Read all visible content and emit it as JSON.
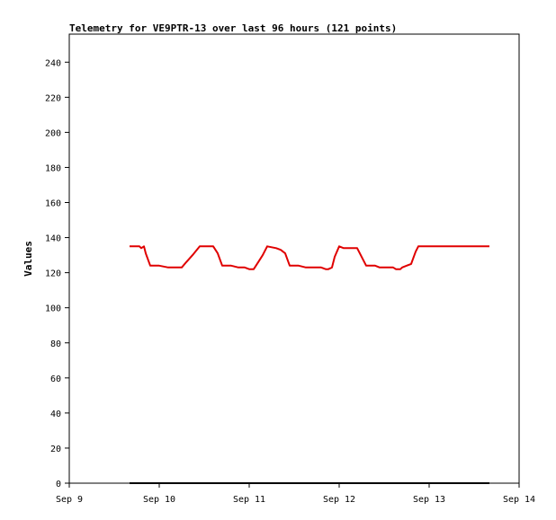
{
  "chart_data": {
    "type": "line",
    "title": "Telemetry for VE9PTR-13 over last 96 hours (121 points)",
    "xlabel": "",
    "ylabel": "Values",
    "x_ticks": [
      "Sep 9",
      "Sep 10",
      "Sep 11",
      "Sep 12",
      "Sep 13",
      "Sep 14"
    ],
    "xlim_days": [
      0,
      5
    ],
    "y_ticks": [
      0,
      20,
      40,
      60,
      80,
      100,
      120,
      140,
      160,
      180,
      200,
      220,
      240
    ],
    "ylim": [
      0,
      256
    ],
    "grid": false,
    "series": [
      {
        "name": "",
        "color": "#e00000",
        "x_days": [
          0.67,
          0.78,
          0.8,
          0.83,
          0.85,
          0.9,
          0.95,
          1.0,
          1.1,
          1.15,
          1.2,
          1.25,
          1.3,
          1.37,
          1.45,
          1.52,
          1.6,
          1.65,
          1.7,
          1.8,
          1.88,
          1.92,
          1.95,
          2.0,
          2.05,
          2.1,
          2.15,
          2.2,
          2.3,
          2.35,
          2.4,
          2.45,
          2.55,
          2.63,
          2.7,
          2.75,
          2.8,
          2.85,
          2.88,
          2.92,
          2.95,
          3.0,
          3.05,
          3.1,
          3.2,
          3.3,
          3.4,
          3.45,
          3.5,
          3.55,
          3.6,
          3.63,
          3.65,
          3.68,
          3.7,
          3.75,
          3.8,
          3.85,
          3.88,
          3.92,
          3.95,
          4.0,
          4.05,
          4.1,
          4.2,
          4.3,
          4.35,
          4.4,
          4.45,
          4.5,
          4.55,
          4.58,
          4.6,
          4.65,
          4.67
        ],
        "values": [
          135,
          135,
          134,
          135,
          131,
          124,
          124,
          124,
          123,
          123,
          123,
          123,
          126,
          130,
          135,
          135,
          135,
          131,
          124,
          124,
          123,
          123,
          123,
          122,
          122,
          126,
          130,
          135,
          134,
          133,
          131,
          124,
          124,
          123,
          123,
          123,
          123,
          122,
          122,
          123,
          129,
          135,
          134,
          134,
          134,
          124,
          124,
          123,
          123,
          123,
          123,
          122,
          122,
          122,
          123,
          124,
          125,
          132,
          135,
          135,
          135,
          135,
          135,
          135,
          135,
          135,
          135,
          135,
          135,
          135,
          135,
          135,
          135,
          135,
          135
        ]
      },
      {
        "name": "",
        "color": "#000000",
        "x_days": [
          0.67,
          4.67
        ],
        "values": [
          0,
          0
        ]
      }
    ]
  }
}
